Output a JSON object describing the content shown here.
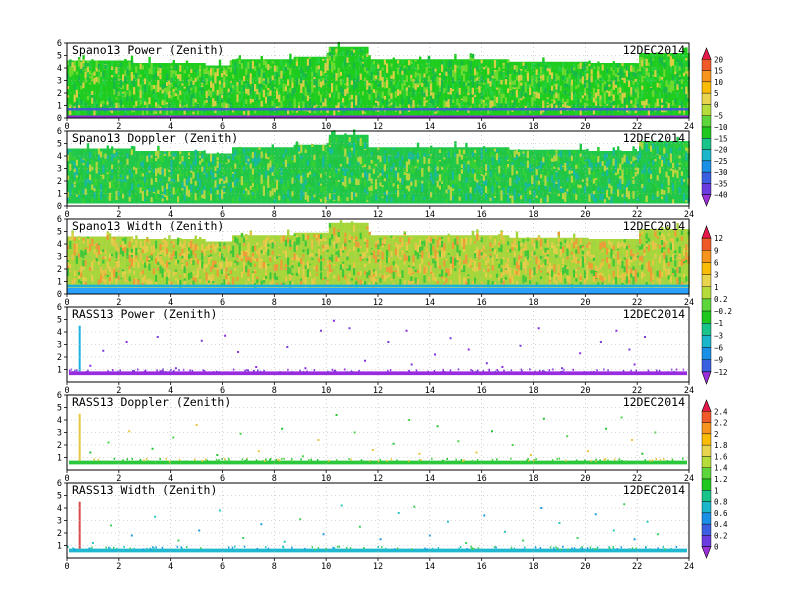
{
  "chart_data": [
    {
      "type": "heatmap",
      "title": "Spano13 Power (Zenith)",
      "date": "12DEC2014",
      "xlim": [
        0,
        24
      ],
      "ylim": [
        0,
        6
      ],
      "x_ticks": [
        "0",
        "2",
        "4",
        "6",
        "8",
        "10",
        "12",
        "14",
        "16",
        "18",
        "20",
        "22",
        "24"
      ],
      "y_ticks": [
        "0",
        "1",
        "2",
        "3",
        "4",
        "5",
        "6"
      ],
      "grid": true,
      "colorbar": "cb1",
      "top_height": [
        [
          0,
          4.6
        ],
        [
          2.5,
          4.4
        ],
        [
          5.3,
          4.2
        ],
        [
          6.3,
          4.7
        ],
        [
          8.7,
          4.9
        ],
        [
          10.1,
          5.7
        ],
        [
          11.6,
          4.7
        ],
        [
          17,
          4.5
        ],
        [
          20.1,
          4.4
        ],
        [
          22,
          5.2
        ],
        [
          24,
          5.4
        ]
      ],
      "bottom_value": 0.2,
      "background_color": "#1ecc1e",
      "band_colors": [
        "#16b84a",
        "#23d23c",
        "#6cda2e",
        "#d9cf45"
      ],
      "low_line_height": 0.7,
      "low_line_color": "#3d5fd0",
      "bottom_strip_color": "#8a2cd8"
    },
    {
      "type": "heatmap",
      "title": "Spano13 Doppler (Zenith)",
      "date": "12DEC2014",
      "xlim": [
        0,
        24
      ],
      "ylim": [
        0,
        6
      ],
      "x_ticks": [
        "0",
        "2",
        "4",
        "6",
        "8",
        "10",
        "12",
        "14",
        "16",
        "18",
        "20",
        "22",
        "24"
      ],
      "y_ticks": [
        "0",
        "1",
        "2",
        "3",
        "4",
        "5",
        "6"
      ],
      "grid": true,
      "colorbar": "cb1",
      "top_height": [
        [
          0,
          4.6
        ],
        [
          2.5,
          4.4
        ],
        [
          5.3,
          4.2
        ],
        [
          6.3,
          4.7
        ],
        [
          8.7,
          4.9
        ],
        [
          10.1,
          5.7
        ],
        [
          11.6,
          4.7
        ],
        [
          17,
          4.5
        ],
        [
          20.1,
          4.4
        ],
        [
          22,
          5.2
        ],
        [
          24,
          5.4
        ]
      ],
      "bottom_value": 0.2,
      "background_color": "#20c84a",
      "band_colors": [
        "#19b8a0",
        "#22c33e",
        "#34d034",
        "#b9d640"
      ],
      "low_line_height": 0,
      "low_line_color": "",
      "bottom_strip_color": ""
    },
    {
      "type": "heatmap",
      "title": "Spano13 Width (Zenith)",
      "date": "12DEC2014",
      "xlim": [
        0,
        24
      ],
      "ylim": [
        0,
        6
      ],
      "x_ticks": [
        "0",
        "2",
        "4",
        "6",
        "8",
        "10",
        "12",
        "14",
        "16",
        "18",
        "20",
        "22",
        "24"
      ],
      "y_ticks": [
        "0",
        "1",
        "2",
        "3",
        "4",
        "5",
        "6"
      ],
      "grid": true,
      "colorbar": "cb2",
      "top_height": [
        [
          0,
          4.6
        ],
        [
          2.5,
          4.4
        ],
        [
          5.3,
          4.2
        ],
        [
          6.3,
          4.7
        ],
        [
          8.7,
          4.9
        ],
        [
          10.1,
          5.7
        ],
        [
          11.6,
          4.7
        ],
        [
          17,
          4.5
        ],
        [
          20.1,
          4.4
        ],
        [
          22,
          5.2
        ],
        [
          24,
          5.4
        ]
      ],
      "bottom_value": 0.5,
      "background_color": "#a6d63a",
      "band_colors": [
        "#e3cf4a",
        "#9ed640",
        "#f09a36",
        "#e8c444",
        "#3fc83a"
      ],
      "low_line_height": 0.65,
      "low_line_color": "#1ab0e0",
      "bottom_strip_color": "#2aa0ff"
    },
    {
      "type": "scatter",
      "title": "RASS13 Power (Zenith)",
      "date": "12DEC2014",
      "xlim": [
        0,
        24
      ],
      "ylim": [
        0,
        6
      ],
      "x_ticks": [
        "0",
        "2",
        "4",
        "6",
        "8",
        "10",
        "12",
        "14",
        "16",
        "18",
        "20",
        "22",
        "24"
      ],
      "y_ticks": [
        "1",
        "2",
        "3",
        "4",
        "5",
        "6"
      ],
      "grid": true,
      "colorbar": "cb2",
      "base_band": [
        0.55,
        0.85
      ],
      "band_color": "#9a2ce0",
      "spike": {
        "x": 0.45,
        "y_top": 4.5,
        "color": "#1ab0e0"
      },
      "point_colors": [
        "#8a2ee0",
        "#7b3ad8"
      ],
      "points": [
        [
          0.9,
          1.3
        ],
        [
          1.4,
          2.5
        ],
        [
          2.3,
          3.2
        ],
        [
          3.5,
          3.6
        ],
        [
          4.2,
          1.1
        ],
        [
          5.2,
          3.3
        ],
        [
          6.1,
          3.7
        ],
        [
          6.6,
          2.4
        ],
        [
          7.3,
          1.2
        ],
        [
          8.5,
          2.8
        ],
        [
          9.2,
          1.1
        ],
        [
          9.8,
          4.1
        ],
        [
          10.3,
          4.9
        ],
        [
          10.9,
          4.3
        ],
        [
          11.5,
          1.7
        ],
        [
          12.4,
          3.2
        ],
        [
          13.1,
          4.1
        ],
        [
          13.3,
          1.4
        ],
        [
          14.2,
          2.2
        ],
        [
          14.8,
          3.5
        ],
        [
          15.5,
          2.6
        ],
        [
          16.2,
          1.5
        ],
        [
          16.8,
          1.2
        ],
        [
          17.5,
          2.9
        ],
        [
          18.2,
          4.3
        ],
        [
          19.1,
          1.1
        ],
        [
          19.8,
          2.3
        ],
        [
          20.6,
          3.2
        ],
        [
          21.2,
          4.1
        ],
        [
          21.7,
          2.6
        ],
        [
          21.9,
          1.4
        ],
        [
          22.3,
          3.6
        ]
      ]
    },
    {
      "type": "scatter",
      "title": "RASS13 Doppler (Zenith)",
      "date": "12DEC2014",
      "xlim": [
        0,
        24
      ],
      "ylim": [
        0,
        6
      ],
      "x_ticks": [
        "0",
        "2",
        "4",
        "6",
        "8",
        "10",
        "12",
        "14",
        "16",
        "18",
        "20",
        "22",
        "24"
      ],
      "y_ticks": [
        "1",
        "2",
        "3",
        "4",
        "5",
        "6"
      ],
      "grid": true,
      "colorbar": "cb3",
      "base_band": [
        0.45,
        0.75
      ],
      "band_color": "#2ac83a",
      "spike": {
        "x": 0.45,
        "y_top": 4.5,
        "color": "#e8c640"
      },
      "point_colors": [
        "#27c437",
        "#4cd64a",
        "#e8c640"
      ],
      "points": [
        [
          0.9,
          1.4
        ],
        [
          1.6,
          2.2
        ],
        [
          2.4,
          3.1
        ],
        [
          3.3,
          1.7
        ],
        [
          4.1,
          2.6
        ],
        [
          5.0,
          3.6
        ],
        [
          5.8,
          1.2
        ],
        [
          6.7,
          2.9
        ],
        [
          7.4,
          1.5
        ],
        [
          8.3,
          3.3
        ],
        [
          9.1,
          1.1
        ],
        [
          9.7,
          2.4
        ],
        [
          10.4,
          4.4
        ],
        [
          11.1,
          3.0
        ],
        [
          11.8,
          1.6
        ],
        [
          12.6,
          2.1
        ],
        [
          13.2,
          4.0
        ],
        [
          13.6,
          1.3
        ],
        [
          14.3,
          3.5
        ],
        [
          15.1,
          2.3
        ],
        [
          15.8,
          1.4
        ],
        [
          16.4,
          3.1
        ],
        [
          17.2,
          2.0
        ],
        [
          17.9,
          1.2
        ],
        [
          18.4,
          4.1
        ],
        [
          19.3,
          2.7
        ],
        [
          20.1,
          1.5
        ],
        [
          20.8,
          3.3
        ],
        [
          21.4,
          4.2
        ],
        [
          21.8,
          2.4
        ],
        [
          22.2,
          1.3
        ],
        [
          22.7,
          3.0
        ]
      ]
    },
    {
      "type": "scatter",
      "title": "RASS13 Width (Zenith)",
      "date": "12DEC2014",
      "xlim": [
        0,
        24
      ],
      "ylim": [
        0,
        6
      ],
      "x_ticks": [
        "0",
        "2",
        "4",
        "6",
        "8",
        "10",
        "12",
        "14",
        "16",
        "18",
        "20",
        "22",
        "24"
      ],
      "y_ticks": [
        "1",
        "2",
        "3",
        "4",
        "5",
        "6"
      ],
      "grid": true,
      "colorbar": "cb3",
      "base_band": [
        0.45,
        0.75
      ],
      "band_color": "#20b8d0",
      "spike": {
        "x": 0.45,
        "y_top": 4.5,
        "color": "#d84a4a"
      },
      "point_colors": [
        "#2ac8c0",
        "#40d060",
        "#1e9ee0"
      ],
      "points": [
        [
          1.0,
          1.2
        ],
        [
          1.7,
          2.6
        ],
        [
          2.5,
          1.8
        ],
        [
          3.4,
          3.3
        ],
        [
          4.3,
          1.4
        ],
        [
          5.1,
          2.2
        ],
        [
          5.9,
          3.8
        ],
        [
          6.8,
          1.6
        ],
        [
          7.5,
          2.7
        ],
        [
          8.4,
          1.3
        ],
        [
          9.0,
          3.1
        ],
        [
          9.9,
          1.9
        ],
        [
          10.6,
          4.2
        ],
        [
          11.3,
          2.5
        ],
        [
          12.1,
          1.5
        ],
        [
          12.8,
          3.6
        ],
        [
          13.4,
          4.1
        ],
        [
          14.0,
          1.8
        ],
        [
          14.7,
          2.9
        ],
        [
          15.4,
          1.2
        ],
        [
          16.1,
          3.4
        ],
        [
          16.9,
          2.1
        ],
        [
          17.6,
          1.4
        ],
        [
          18.3,
          4.0
        ],
        [
          19.0,
          2.8
        ],
        [
          19.7,
          1.6
        ],
        [
          20.4,
          3.5
        ],
        [
          21.1,
          2.2
        ],
        [
          21.5,
          4.3
        ],
        [
          21.9,
          1.5
        ],
        [
          22.4,
          2.9
        ],
        [
          22.8,
          1.9
        ]
      ]
    }
  ],
  "colorbars": {
    "cb1": {
      "labels": [
        "20",
        "15",
        "10",
        "5",
        "0",
        "−5",
        "−10",
        "−15",
        "−20",
        "−25",
        "−30",
        "−35",
        "−40"
      ],
      "colors": [
        "#e6194b",
        "#f05a28",
        "#f7941d",
        "#fbbc05",
        "#e8d44d",
        "#b5dc3a",
        "#5cd63a",
        "#1ec81e",
        "#19c48a",
        "#19b7c9",
        "#1a8fe6",
        "#3a5fe0",
        "#6a3ce0",
        "#9b30d9"
      ]
    },
    "cb2": {
      "labels": [
        "12",
        "9",
        "6",
        "3",
        "1",
        "0.2",
        "−0.2",
        "−1",
        "−3",
        "−6",
        "−9",
        "−12"
      ],
      "colors": [
        "#e6194b",
        "#f05a28",
        "#f7941d",
        "#fbbc05",
        "#e8d44d",
        "#b5dc3a",
        "#5cd63a",
        "#1ec81e",
        "#19c48a",
        "#19b7c9",
        "#1a8fe6",
        "#3a5fe0",
        "#9b30d9"
      ]
    },
    "cb3": {
      "labels": [
        "2.4",
        "2.2",
        "2",
        "1.8",
        "1.6",
        "1.4",
        "1.2",
        "1",
        "0.8",
        "0.6",
        "0.4",
        "0.2",
        "0"
      ],
      "colors": [
        "#e6194b",
        "#f05a28",
        "#f7941d",
        "#fbbc05",
        "#e8d44d",
        "#b5dc3a",
        "#5cd63a",
        "#1ec81e",
        "#19c48a",
        "#19b7c9",
        "#1a8fe6",
        "#3a5fe0",
        "#6a3ce0",
        "#9b30d9"
      ]
    }
  }
}
